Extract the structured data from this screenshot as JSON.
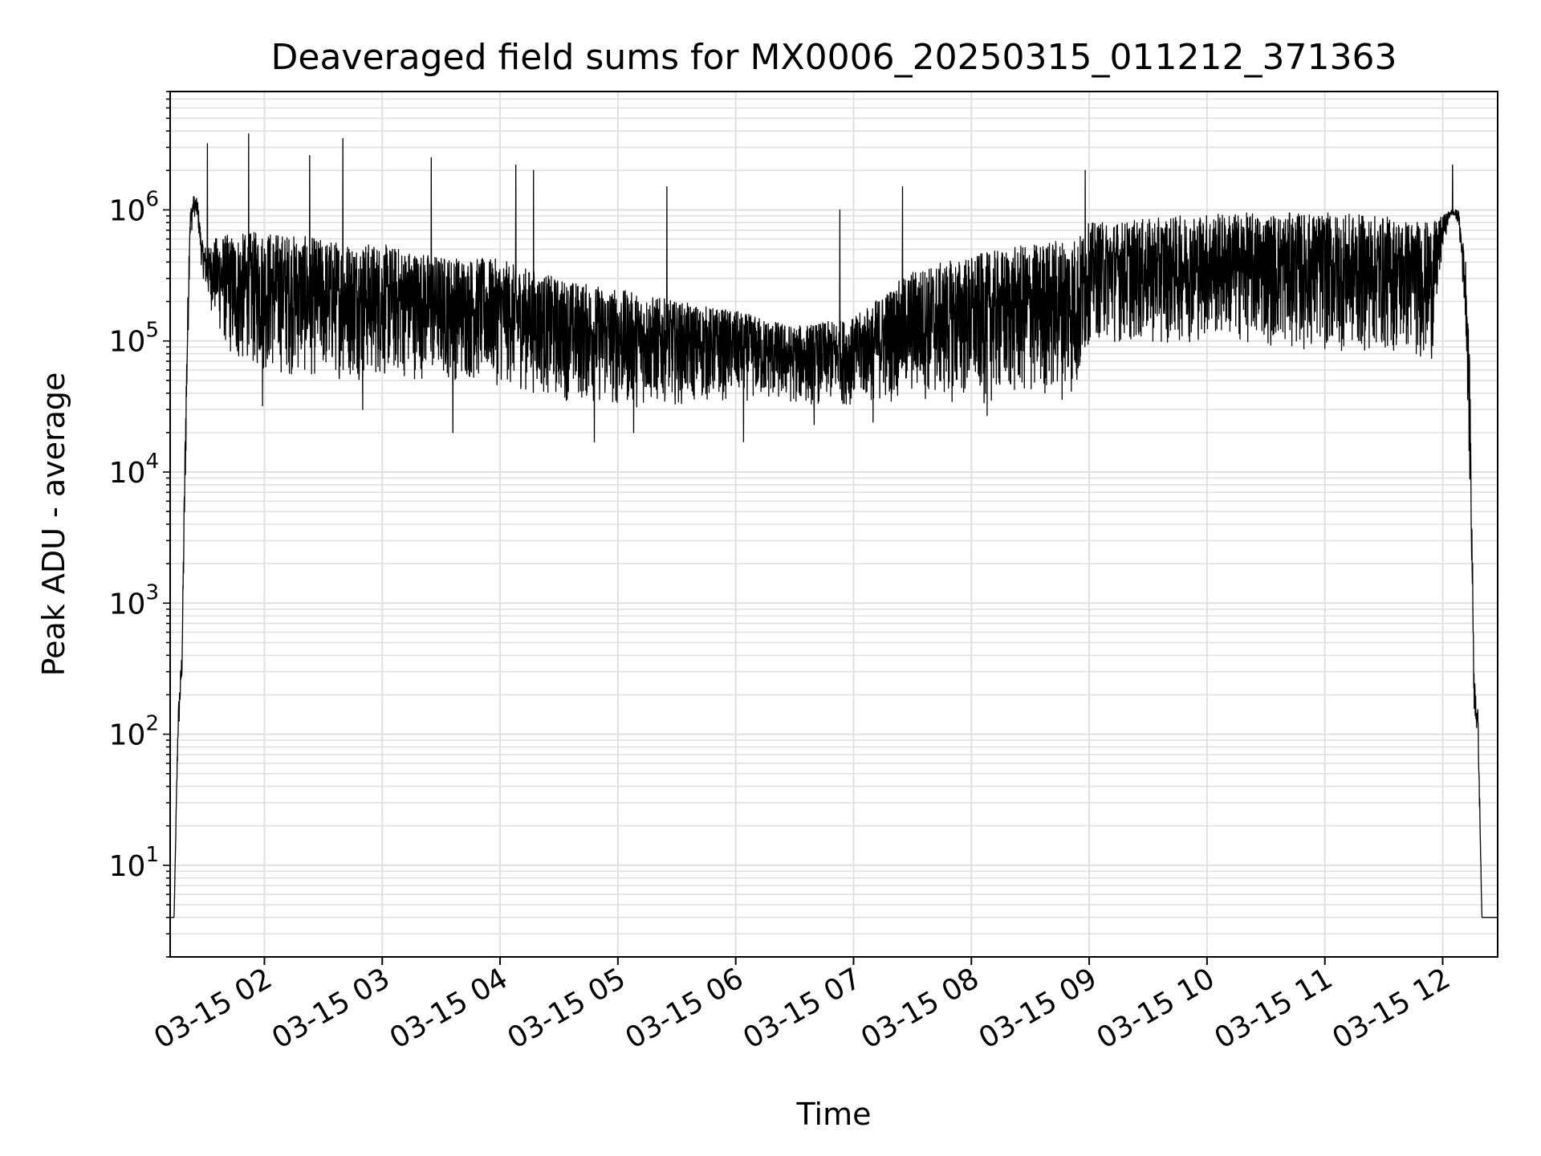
{
  "chart_data": {
    "type": "line",
    "title": "Deaveraged field sums for MX0006_20250315_011212_371363",
    "xlabel": "Time",
    "ylabel": "Peak ADU - average",
    "yscale": "log",
    "ylim": [
      2,
      8000000
    ],
    "xlim": [
      "2025-03-15 01:12",
      "2025-03-15 12:28"
    ],
    "grid": true,
    "line_color": "#000000",
    "grid_color": "#e0e0e0",
    "x_ticks": [
      "03-15 02",
      "03-15 03",
      "03-15 04",
      "03-15 05",
      "03-15 06",
      "03-15 07",
      "03-15 08",
      "03-15 09",
      "03-15 10",
      "03-15 11",
      "03-15 12"
    ],
    "x_tick_times": [
      "2025-03-15 02:00",
      "2025-03-15 03:00",
      "2025-03-15 04:00",
      "2025-03-15 05:00",
      "2025-03-15 06:00",
      "2025-03-15 07:00",
      "2025-03-15 08:00",
      "2025-03-15 09:00",
      "2025-03-15 10:00",
      "2025-03-15 11:00",
      "2025-03-15 12:00"
    ],
    "y_ticks": [
      {
        "base": "10",
        "exp": "1",
        "value": 10
      },
      {
        "base": "10",
        "exp": "2",
        "value": 100
      },
      {
        "base": "10",
        "exp": "3",
        "value": 1000
      },
      {
        "base": "10",
        "exp": "4",
        "value": 10000
      },
      {
        "base": "10",
        "exp": "5",
        "value": 100000
      },
      {
        "base": "10",
        "exp": "6",
        "value": 1000000
      }
    ],
    "series": [
      {
        "envelope": {
          "x": [
            "2025-03-15 01:12",
            "2025-03-15 01:14",
            "2025-03-15 01:16",
            "2025-03-15 01:18",
            "2025-03-15 01:20",
            "2025-03-15 01:22",
            "2025-03-15 01:24",
            "2025-03-15 01:26",
            "2025-03-15 01:28",
            "2025-03-15 01:31",
            "2025-03-15 01:34",
            "2025-03-15 01:38",
            "2025-03-15 01:45",
            "2025-03-15 02:00",
            "2025-03-15 02:30",
            "2025-03-15 03:00",
            "2025-03-15 03:30",
            "2025-03-15 04:00",
            "2025-03-15 04:30",
            "2025-03-15 05:00",
            "2025-03-15 05:30",
            "2025-03-15 06:00",
            "2025-03-15 06:30",
            "2025-03-15 07:00",
            "2025-03-15 07:30",
            "2025-03-15 08:00",
            "2025-03-15 08:30",
            "2025-03-15 08:55",
            "2025-03-15 09:00",
            "2025-03-15 09:30",
            "2025-03-15 10:00",
            "2025-03-15 10:30",
            "2025-03-15 11:00",
            "2025-03-15 11:30",
            "2025-03-15 11:55",
            "2025-03-15 12:00",
            "2025-03-15 12:04",
            "2025-03-15 12:08",
            "2025-03-15 12:12",
            "2025-03-15 12:14",
            "2025-03-15 12:16",
            "2025-03-15 12:18",
            "2025-03-15 12:20",
            "2025-03-15 12:22",
            "2025-03-15 12:28"
          ],
          "upper": [
            4,
            4,
            150,
            450,
            50000,
            1000000,
            1300000,
            1200000,
            600000,
            500000,
            600000,
            650000,
            650000,
            700000,
            600000,
            550000,
            450000,
            420000,
            300000,
            250000,
            200000,
            170000,
            130000,
            150000,
            350000,
            450000,
            550000,
            650000,
            800000,
            850000,
            950000,
            950000,
            950000,
            900000,
            800000,
            900000,
            1000000,
            1000000,
            400000,
            50000,
            300,
            150,
            4,
            4,
            4
          ],
          "lower": [
            4,
            4,
            80,
            250,
            10000,
            500000,
            900000,
            800000,
            350000,
            200000,
            150000,
            100000,
            60000,
            55000,
            50000,
            50000,
            50000,
            45000,
            35000,
            30000,
            32000,
            35000,
            32000,
            32000,
            35000,
            32000,
            35000,
            35000,
            100000,
            90000,
            100000,
            90000,
            80000,
            80000,
            70000,
            500000,
            900000,
            800000,
            100000,
            5000,
            150,
            80,
            4,
            4,
            4
          ]
        },
        "spikes": [
          {
            "x": "2025-03-15 01:31",
            "y": 3200000
          },
          {
            "x": "2025-03-15 01:52",
            "y": 3800000
          },
          {
            "x": "2025-03-15 02:23",
            "y": 2600000
          },
          {
            "x": "2025-03-15 02:40",
            "y": 3500000
          },
          {
            "x": "2025-03-15 03:25",
            "y": 2500000
          },
          {
            "x": "2025-03-15 04:08",
            "y": 2200000
          },
          {
            "x": "2025-03-15 04:17",
            "y": 2000000
          },
          {
            "x": "2025-03-15 05:25",
            "y": 1500000
          },
          {
            "x": "2025-03-15 06:53",
            "y": 1000000
          },
          {
            "x": "2025-03-15 07:25",
            "y": 1500000
          },
          {
            "x": "2025-03-15 08:58",
            "y": 2000000
          },
          {
            "x": "2025-03-15 12:05",
            "y": 2200000
          }
        ],
        "dips": [
          {
            "x": "2025-03-15 01:59",
            "y": 32000
          },
          {
            "x": "2025-03-15 02:50",
            "y": 30000
          },
          {
            "x": "2025-03-15 03:36",
            "y": 20000
          },
          {
            "x": "2025-03-15 04:48",
            "y": 17000
          },
          {
            "x": "2025-03-15 05:08",
            "y": 20000
          },
          {
            "x": "2025-03-15 06:04",
            "y": 17000
          },
          {
            "x": "2025-03-15 06:40",
            "y": 23000
          },
          {
            "x": "2025-03-15 07:10",
            "y": 24000
          },
          {
            "x": "2025-03-15 08:08",
            "y": 27000
          }
        ]
      }
    ]
  }
}
